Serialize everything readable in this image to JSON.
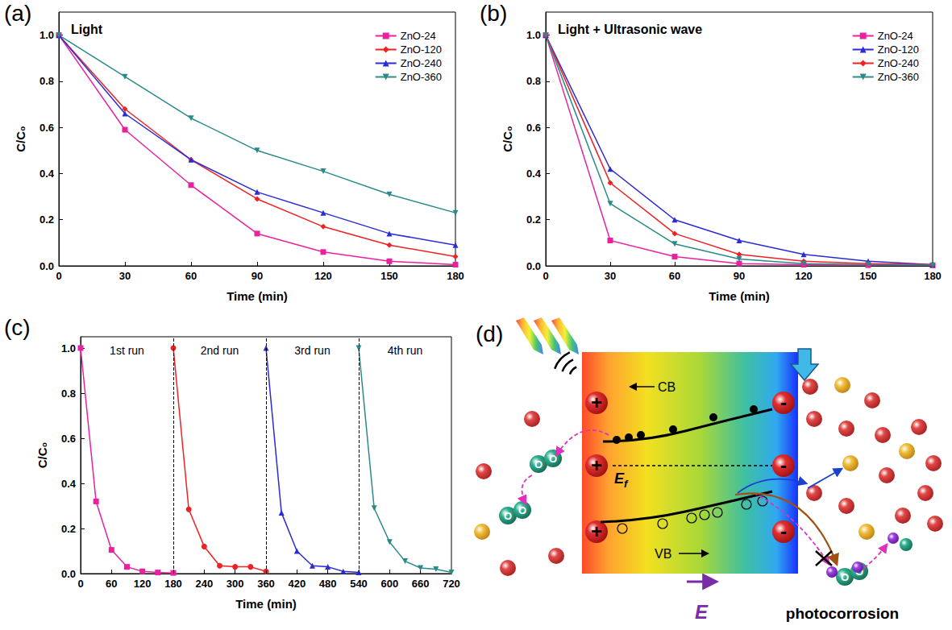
{
  "chart_data": [
    {
      "panel": "(a)",
      "type": "line",
      "title": "Light",
      "xlabel": "Time (min)",
      "ylabel": "C/C₀",
      "x": [
        0,
        30,
        60,
        90,
        120,
        150,
        180
      ],
      "xlim": [
        0,
        180
      ],
      "xticks": [
        0,
        30,
        60,
        90,
        120,
        150,
        180
      ],
      "ylim": [
        0,
        1.1
      ],
      "yticks": [
        {
          "value": 0,
          "label": "0.0"
        },
        {
          "value": 0.2,
          "label": "0.2"
        },
        {
          "value": 0.4,
          "label": "0.4"
        },
        {
          "value": 0.6,
          "label": "0.6"
        },
        {
          "value": 0.8,
          "label": "0.8"
        },
        {
          "value": 1,
          "label": "1.0"
        }
      ],
      "grid": false,
      "legend": "upper right",
      "series": [
        {
          "name": "ZnO-24",
          "color": "#e8229f",
          "marker": "square",
          "values": [
            1,
            0.59,
            0.35,
            0.14,
            0.06,
            0.02,
            0.005
          ]
        },
        {
          "name": "ZnO-120",
          "color": "#ee2222",
          "marker": "diamond",
          "values": [
            1,
            0.68,
            0.46,
            0.29,
            0.17,
            0.09,
            0.04
          ]
        },
        {
          "name": "ZnO-240",
          "color": "#2a2ad6",
          "marker": "triangle",
          "values": [
            1,
            0.66,
            0.46,
            0.32,
            0.23,
            0.14,
            0.09
          ]
        },
        {
          "name": "ZnO-360",
          "color": "#2a8a8a",
          "marker": "triangle-down",
          "values": [
            1,
            0.82,
            0.64,
            0.5,
            0.41,
            0.31,
            0.23
          ]
        }
      ]
    },
    {
      "panel": "(b)",
      "type": "line",
      "title": "Light + Ultrasonic wave",
      "xlabel": "Time (min)",
      "ylabel": "C/C₀",
      "x": [
        0,
        30,
        60,
        90,
        120,
        150,
        180
      ],
      "xlim": [
        0,
        180
      ],
      "xticks": [
        0,
        30,
        60,
        90,
        120,
        150,
        180
      ],
      "ylim": [
        0,
        1.1
      ],
      "yticks": [
        {
          "value": 0,
          "label": "0.0"
        },
        {
          "value": 0.2,
          "label": "0.2"
        },
        {
          "value": 0.4,
          "label": "0.4"
        },
        {
          "value": 0.6,
          "label": "0.6"
        },
        {
          "value": 0.8,
          "label": "0.8"
        },
        {
          "value": 1,
          "label": "1.0"
        }
      ],
      "grid": false,
      "legend": "upper right",
      "series": [
        {
          "name": "ZnO-24",
          "color": "#e8229f",
          "marker": "square",
          "values": [
            1,
            0.11,
            0.04,
            0.01,
            0.005,
            0.003,
            0.002
          ]
        },
        {
          "name": "ZnO-120",
          "color": "#2a2ad6",
          "marker": "triangle",
          "values": [
            1,
            0.42,
            0.2,
            0.11,
            0.05,
            0.02,
            0.005
          ]
        },
        {
          "name": "ZnO-240",
          "color": "#ee2222",
          "marker": "diamond",
          "values": [
            1,
            0.36,
            0.14,
            0.05,
            0.02,
            0.01,
            0.005
          ]
        },
        {
          "name": "ZnO-360",
          "color": "#2a8a8a",
          "marker": "triangle-down",
          "values": [
            1,
            0.27,
            0.095,
            0.03,
            0.01,
            0.005,
            0.003
          ]
        }
      ]
    },
    {
      "panel": "(c)",
      "type": "line",
      "xlabel": "Time (min)",
      "ylabel": "C/C₀",
      "xlim": [
        0,
        720
      ],
      "xticks": [
        0,
        60,
        120,
        180,
        240,
        300,
        360,
        420,
        480,
        540,
        600,
        660,
        720
      ],
      "ylim": [
        0,
        1.05
      ],
      "yticks": [
        {
          "value": 0,
          "label": "0.0"
        },
        {
          "value": 0.2,
          "label": "0.2"
        },
        {
          "value": 0.4,
          "label": "0.4"
        },
        {
          "value": 0.6,
          "label": "0.6"
        },
        {
          "value": 0.8,
          "label": "0.8"
        },
        {
          "value": 1,
          "label": "1.0"
        }
      ],
      "grid": false,
      "series": [
        {
          "name": "1st run",
          "color": "#e8229f",
          "marker": "square",
          "x": [
            0,
            30,
            60,
            90,
            120,
            150,
            180
          ],
          "values": [
            1,
            0.32,
            0.105,
            0.03,
            0.01,
            0.005,
            0.003
          ]
        },
        {
          "name": "2nd run",
          "color": "#ee2222",
          "marker": "circle",
          "x": [
            180,
            210,
            240,
            270,
            300,
            330,
            360
          ],
          "values": [
            1,
            0.285,
            0.12,
            0.035,
            0.03,
            0.03,
            0.01
          ]
        },
        {
          "name": "3rd run",
          "color": "#2a2ad6",
          "marker": "triangle",
          "x": [
            360,
            390,
            420,
            450,
            480,
            510,
            540
          ],
          "values": [
            1,
            0.27,
            0.1,
            0.035,
            0.03,
            0.01,
            0.005
          ]
        },
        {
          "name": "4th run",
          "color": "#2a8a8a",
          "marker": "triangle-down",
          "x": [
            540,
            570,
            600,
            630,
            660,
            690,
            720
          ],
          "values": [
            1,
            0.29,
            0.14,
            0.055,
            0.025,
            0.02,
            0.005
          ]
        }
      ]
    }
  ],
  "diagram": {
    "panel": "(d)",
    "conduction_band": "CB",
    "valence_band": "VB",
    "fermi_level": {
      "symbol": "E",
      "subscript": "f"
    },
    "positive_charge": "+",
    "negative_charge": "-",
    "oxygen": "O",
    "field": "E",
    "photocorrosion": "photocorrosion"
  }
}
